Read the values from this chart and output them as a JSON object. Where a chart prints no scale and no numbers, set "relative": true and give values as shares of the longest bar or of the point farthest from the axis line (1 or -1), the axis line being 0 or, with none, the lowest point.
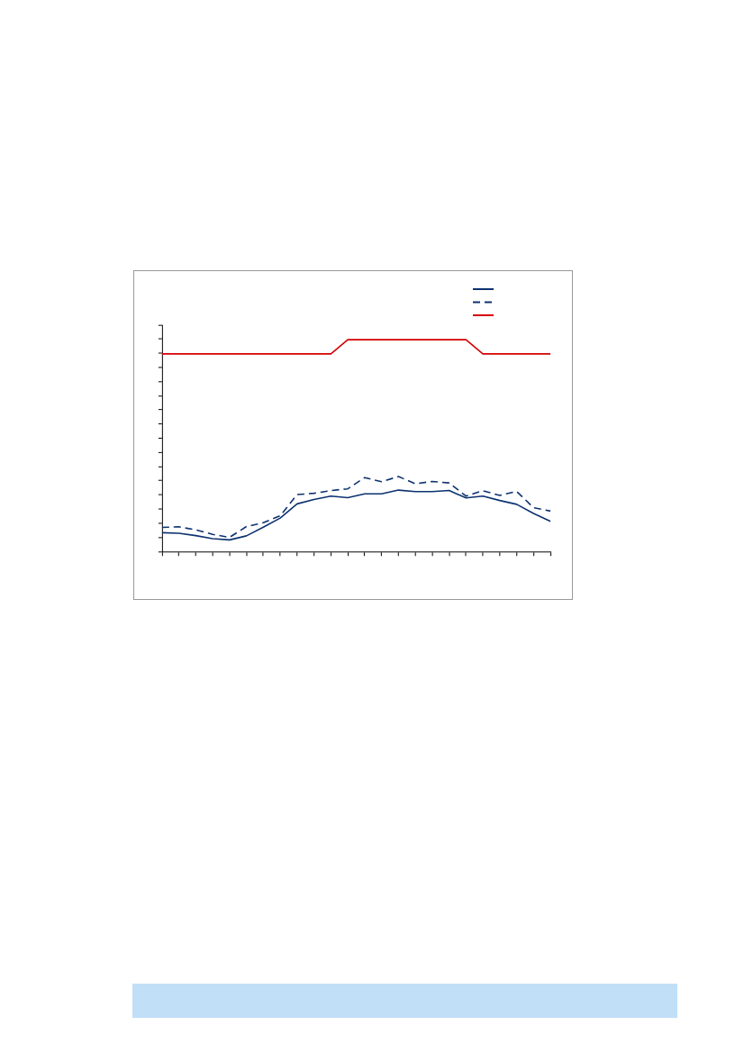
{
  "chart_data": {
    "type": "line",
    "relative": true,
    "categories": [
      null,
      null,
      null,
      null,
      null,
      null,
      null,
      null,
      null,
      null,
      null,
      null,
      null,
      null,
      null,
      null,
      null,
      null,
      null,
      null,
      null,
      null,
      null,
      null
    ],
    "series": [
      {
        "color": "#0d3270",
        "line_style": "solid",
        "values": [
          0.089,
          0.086,
          0.075,
          0.061,
          0.055,
          0.074,
          0.115,
          0.158,
          0.225,
          0.246,
          0.262,
          0.254,
          0.272,
          0.272,
          0.29,
          0.283,
          0.283,
          0.288,
          0.253,
          0.262,
          0.241,
          0.223,
          0.18,
          0.143
        ]
      },
      {
        "color": "#0d3270",
        "line_style": "dashed",
        "values": [
          0.114,
          0.117,
          0.102,
          0.081,
          0.067,
          0.118,
          0.136,
          0.169,
          0.269,
          0.275,
          0.288,
          0.296,
          0.349,
          0.33,
          0.354,
          0.32,
          0.331,
          0.324,
          0.262,
          0.287,
          0.265,
          0.284,
          0.207,
          0.191
        ]
      },
      {
        "color": "#d40000",
        "line_style": "solid",
        "values": [
          0.933,
          0.933,
          0.933,
          0.933,
          0.933,
          0.933,
          0.933,
          0.933,
          0.933,
          0.933,
          0.933,
          1,
          1,
          1,
          1,
          1,
          1,
          1,
          1,
          0.933,
          0.933,
          0.933,
          0.933,
          0.933
        ]
      }
    ],
    "grid": false,
    "marker": "none"
  }
}
